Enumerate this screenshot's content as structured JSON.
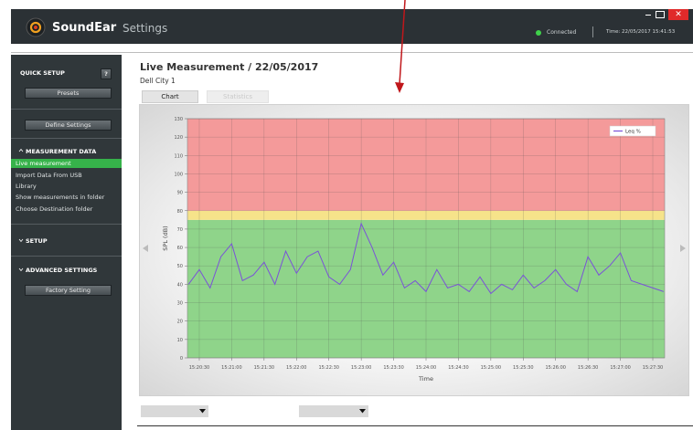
{
  "header": {
    "brand": "SoundEar",
    "app": "Settings",
    "status": "Connected",
    "time": "Time: 22/05/2017 15:41:53"
  },
  "sidebar": {
    "quick_setup": "QUICK SETUP",
    "help": "?",
    "presets": "Presets",
    "define": "Define Settings",
    "measurement_data": "MEASUREMENT DATA",
    "items": [
      "Live measurement",
      "Import Data From USB",
      "Library",
      "Show measurements in folder",
      "Choose Destination folder"
    ],
    "setup": "SETUP",
    "advanced": "ADVANCED SETTINGS",
    "factory": "Factory Setting"
  },
  "main": {
    "title": "Live Measurement / 22/05/2017",
    "location": "Dell City 1",
    "tabs": [
      "Chart",
      "Statistics"
    ]
  },
  "chart_data": {
    "type": "line",
    "y_label": "SPL (dB)",
    "x_label": "Time",
    "x": [
      "15:20:20",
      "15:20:30",
      "15:20:40",
      "15:20:50",
      "15:21:00",
      "15:21:10",
      "15:21:20",
      "15:21:30",
      "15:21:40",
      "15:21:50",
      "15:22:00",
      "15:22:10",
      "15:22:20",
      "15:22:30",
      "15:22:40",
      "15:22:50",
      "15:23:00",
      "15:23:10",
      "15:23:20",
      "15:23:30",
      "15:23:40",
      "15:23:50",
      "15:24:00",
      "15:24:10",
      "15:24:20",
      "15:24:30",
      "15:24:40",
      "15:24:50",
      "15:25:00",
      "15:25:10",
      "15:25:20",
      "15:25:30",
      "15:25:40",
      "15:25:50",
      "15:26:00",
      "15:26:10",
      "15:26:20",
      "15:26:30",
      "15:26:40",
      "15:26:50",
      "15:27:00",
      "15:27:10",
      "15:27:20",
      "15:27:30",
      "15:27:40"
    ],
    "series": [
      {
        "name": "Leq %",
        "color": "#7a52d8",
        "values": [
          40,
          48,
          38,
          55,
          62,
          42,
          45,
          52,
          40,
          58,
          46,
          55,
          58,
          44,
          40,
          48,
          73,
          60,
          45,
          52,
          38,
          42,
          36,
          48,
          38,
          40,
          36,
          44,
          35,
          40,
          37,
          45,
          38,
          42,
          48,
          40,
          36,
          55,
          45,
          50,
          57,
          42,
          40,
          38,
          36
        ]
      }
    ],
    "xlim": [
      "15:20:19",
      "15:27:41"
    ],
    "xticks": [
      "15:20:30",
      "15:21:00",
      "15:21:30",
      "15:22:00",
      "15:22:30",
      "15:23:00",
      "15:23:30",
      "15:24:00",
      "15:24:30",
      "15:25:00",
      "15:25:30",
      "15:26:00",
      "15:26:30",
      "15:27:00",
      "15:27:30"
    ],
    "ylim": [
      0,
      130
    ],
    "yticks": [
      0,
      10,
      20,
      30,
      40,
      50,
      60,
      70,
      80,
      90,
      100,
      110,
      120,
      130
    ],
    "bands": [
      {
        "from": 0,
        "to": 75,
        "color": "#8fd48a"
      },
      {
        "from": 75,
        "to": 80,
        "color": "#f6e38a"
      },
      {
        "from": 80,
        "to": 130,
        "color": "#f49a9a"
      }
    ],
    "grid": true,
    "legend": "top-right"
  }
}
